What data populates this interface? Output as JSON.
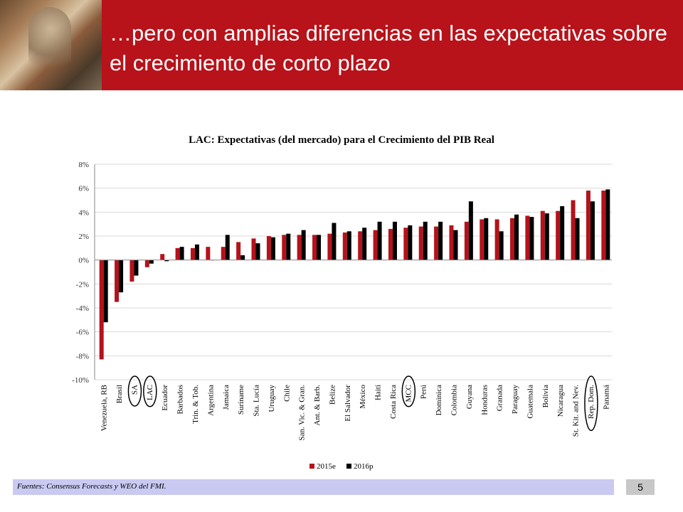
{
  "header": {
    "title": "…pero con amplias diferencias en las expectativas sobre el crecimiento de corto plazo"
  },
  "footer": {
    "source": "Fuentes: Consensus Forecasts y WEO del FMI.",
    "page_number": "5"
  },
  "colors": {
    "header": "#b8121a",
    "series_2015e": "#b5121b",
    "series_2016p": "#000000",
    "footer": "#c9c9f2"
  },
  "chart_data": {
    "type": "bar",
    "title": "LAC: Expectativas (del mercado) para el Crecimiento del PIB Real",
    "xlabel": "",
    "ylabel": "",
    "ylim": [
      -10,
      8
    ],
    "yticks": [
      "8%",
      "6%",
      "4%",
      "2%",
      "0%",
      "-2%",
      "-4%",
      "-6%",
      "-8%",
      "-10%"
    ],
    "grid": true,
    "legend": "bottom",
    "categories": [
      "Venezuela, RB",
      "Brasil",
      "SA",
      "LAC",
      "Ecuador",
      "Barbados",
      "Trin. & Tob.",
      "Argentina",
      "Jamaica",
      "Suriname",
      "Sta. Lucía",
      "Uruguay",
      "Chile",
      "San. Vic. & Gran.",
      "Ant. & Barb.",
      "Belize",
      "El Salvador",
      "México",
      "Haití",
      "Costa Rica",
      "MCC",
      "Perú",
      "Dominica",
      "Colombia",
      "Guyana",
      "Honduras",
      "Granada",
      "Paraguay",
      "Guatemala",
      "Bolivia",
      "Nicaragua",
      "St. Kit. and Nev.",
      "Rep. Dom.",
      "Panamá"
    ],
    "circled": [
      "SA",
      "LAC",
      "MCC",
      "Rep. Dom."
    ],
    "series": [
      {
        "name": "2015e",
        "values": [
          -8.3,
          -3.5,
          -1.8,
          -0.6,
          0.5,
          1.0,
          1.0,
          1.1,
          1.1,
          1.5,
          1.8,
          2.0,
          2.1,
          2.1,
          2.1,
          2.2,
          2.3,
          2.4,
          2.5,
          2.6,
          2.7,
          2.8,
          2.8,
          2.9,
          3.2,
          3.4,
          3.4,
          3.5,
          3.7,
          4.1,
          4.1,
          5.0,
          5.8,
          5.8
        ]
      },
      {
        "name": "2016p",
        "values": [
          -5.2,
          -2.7,
          -1.3,
          -0.3,
          -0.1,
          1.1,
          1.3,
          0.0,
          2.1,
          0.4,
          1.4,
          1.9,
          2.2,
          2.5,
          2.1,
          3.1,
          2.4,
          2.7,
          3.2,
          3.2,
          2.9,
          3.2,
          3.2,
          2.5,
          4.9,
          3.5,
          2.4,
          3.8,
          3.6,
          3.9,
          4.5,
          3.5,
          4.9,
          5.9
        ]
      }
    ]
  }
}
